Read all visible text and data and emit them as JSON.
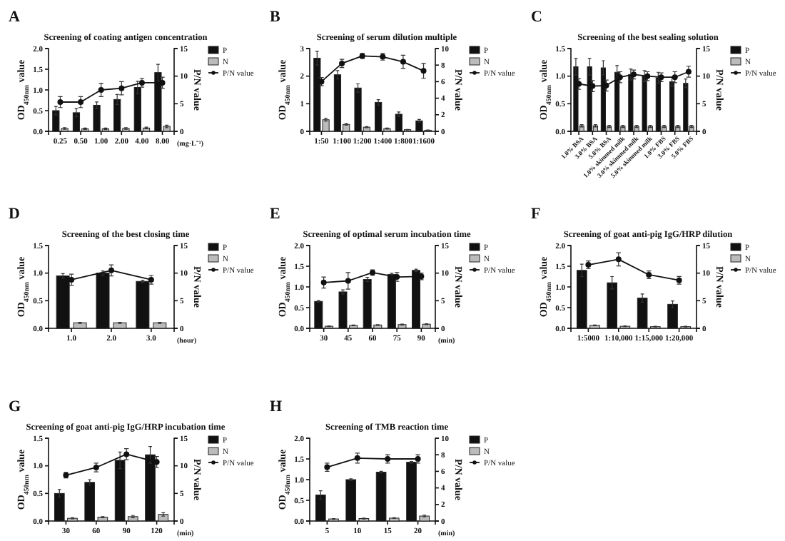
{
  "chart_data": [
    {
      "type": "bar",
      "title": "Screening of coating antigen concentration",
      "annotations": [
        "A"
      ],
      "xlabel": "(mg·L⁻¹)",
      "ylabel": "OD$_{450nm}$ value",
      "y2label": "P/N value",
      "legend": "right",
      "marker": "circle",
      "categories": [
        "0.25",
        "0.50",
        "1.00",
        "2.00",
        "4.00",
        "8.00"
      ],
      "ylim": [
        0,
        2
      ],
      "yticks": [
        {
          "value": 0,
          "label": "0.0"
        },
        0.5,
        {
          "value": 1,
          "label": "1.0"
        },
        1.5,
        {
          "value": 2,
          "label": "2.0"
        }
      ],
      "y2lim": [
        0,
        15
      ],
      "y2ticks": [
        0,
        5,
        10,
        15
      ],
      "series": [
        {
          "name": "P",
          "color": "#111111",
          "values": [
            0.5,
            0.45,
            0.63,
            0.77,
            1.06,
            1.42
          ],
          "errors": [
            0.1,
            0.1,
            0.08,
            0.12,
            0.15,
            0.2
          ]
        },
        {
          "name": "N",
          "color": "#bbbbbb",
          "values": [
            0.07,
            0.06,
            0.06,
            0.07,
            0.08,
            0.12
          ],
          "errors": [
            0.02,
            0.02,
            0.02,
            0.02,
            0.02,
            0.03
          ]
        },
        {
          "name": "P/N value",
          "type": "line",
          "axis": "y2",
          "color": "#111111",
          "values": [
            5.3,
            5.3,
            7.5,
            7.8,
            8.8,
            8.8
          ],
          "errors": [
            1,
            1,
            1.2,
            1.2,
            0.8,
            1
          ]
        }
      ]
    },
    {
      "type": "bar",
      "title": "Screening of serum dilution multiple",
      "annotations": [
        "B"
      ],
      "ylabel": "OD$_{450nm}$ value",
      "y2label": "P/N value",
      "legend": "right",
      "marker": "circle",
      "categories": [
        "1:50",
        "1:100",
        "1:200",
        "1:400",
        "1:800",
        "1:1600"
      ],
      "ylim": [
        0,
        3
      ],
      "yticks": [
        0,
        1,
        2,
        3
      ],
      "y2lim": [
        0,
        10
      ],
      "y2ticks": [
        0,
        2,
        4,
        6,
        8,
        10
      ],
      "series": [
        {
          "name": "P",
          "color": "#111111",
          "values": [
            2.65,
            2.05,
            1.57,
            1.05,
            0.62,
            0.38
          ],
          "errors": [
            0.25,
            0.15,
            0.15,
            0.1,
            0.08,
            0.05
          ]
        },
        {
          "name": "N",
          "color": "#bbbbbb",
          "values": [
            0.42,
            0.25,
            0.15,
            0.1,
            0.06,
            0.04
          ],
          "errors": [
            0.05,
            0.03,
            0.02,
            0.02,
            0.01,
            0.01
          ]
        },
        {
          "name": "P/N value",
          "type": "line",
          "axis": "y2",
          "color": "#111111",
          "values": [
            6,
            8.2,
            9.1,
            9,
            8.4,
            7.3
          ],
          "errors": [
            0.5,
            0.5,
            0.3,
            0.4,
            0.8,
            0.9
          ]
        }
      ]
    },
    {
      "type": "bar",
      "title": "Screening of the best sealing solution",
      "annotations": [
        "C"
      ],
      "ylabel": "OD$_{450nm}$ value",
      "y2label": "P/N value",
      "legend": "right",
      "marker": "circle",
      "categories": [
        "1.0% BSA",
        "3.0% BSA",
        "5.0% BSA",
        "1.0% skimmed milk",
        "3.0% skimmed milk",
        "5.0% skimmed milk",
        "1.0% FBS",
        "3.0% FBS",
        "5.0% FBS"
      ],
      "ylim": [
        0,
        1.5
      ],
      "yticks": [
        {
          "value": 0,
          "label": "0.0"
        },
        0.5,
        {
          "value": 1,
          "label": "1.0"
        },
        1.5
      ],
      "y2lim": [
        0,
        15
      ],
      "y2ticks": [
        0,
        5,
        10,
        15
      ],
      "series": [
        {
          "name": "P",
          "color": "#111111",
          "values": [
            1.17,
            1.17,
            1.15,
            1.07,
            1.03,
            1.0,
            0.97,
            0.9,
            0.87
          ],
          "errors": [
            0.15,
            0.15,
            0.13,
            0.12,
            0.1,
            0.1,
            0.1,
            0.08,
            0.08
          ]
        },
        {
          "name": "N",
          "color": "#bbbbbb",
          "values": [
            0.1,
            0.1,
            0.09,
            0.09,
            0.09,
            0.09,
            0.09,
            0.09,
            0.09
          ],
          "errors": [
            0.02,
            0.02,
            0.02,
            0.02,
            0.02,
            0.02,
            0.02,
            0.02,
            0.02
          ]
        },
        {
          "name": "P/N value",
          "type": "line",
          "axis": "y2",
          "color": "#111111",
          "values": [
            8.6,
            8.2,
            8.3,
            9.8,
            10.3,
            10,
            9.8,
            9.8,
            10.8
          ],
          "errors": [
            1,
            1,
            1,
            1,
            0.8,
            0.8,
            0.8,
            1,
            1
          ]
        }
      ]
    },
    {
      "type": "bar",
      "title": "Screening of the best closing time",
      "annotations": [
        "D"
      ],
      "xlabel": "(hour)",
      "ylabel": "OD$_{450nm}$ value",
      "y2label": "P/N value",
      "legend": "right",
      "marker": "circle",
      "categories": [
        "1.0",
        "2.0",
        "3.0"
      ],
      "ylim": [
        0,
        1.5
      ],
      "yticks": [
        {
          "value": 0,
          "label": "0.0"
        },
        0.5,
        {
          "value": 1,
          "label": "1.0"
        },
        1.5
      ],
      "y2lim": [
        0,
        15
      ],
      "y2ticks": [
        0,
        5,
        10,
        15
      ],
      "series": [
        {
          "name": "P",
          "color": "#111111",
          "values": [
            0.95,
            1.0,
            0.85
          ],
          "errors": [
            0.04,
            0.04,
            0.02
          ]
        },
        {
          "name": "N",
          "color": "#bbbbbb",
          "values": [
            0.1,
            0.1,
            0.1
          ],
          "errors": [
            0.01,
            0.01,
            0.01
          ]
        },
        {
          "name": "P/N value",
          "type": "line",
          "axis": "y2",
          "color": "#111111",
          "values": [
            8.8,
            10.5,
            8.8
          ],
          "errors": [
            1,
            1,
            0.8
          ]
        }
      ]
    },
    {
      "type": "bar",
      "title": "Screening of optimal serum incubation time",
      "annotations": [
        "E"
      ],
      "xlabel": "(min)",
      "ylabel": "OD$_{450nm}$ value",
      "y2label": "P/N value",
      "legend": "right",
      "marker": "circle",
      "categories": [
        "30",
        "45",
        "60",
        "75",
        "90"
      ],
      "ylim": [
        0,
        2
      ],
      "yticks": [
        {
          "value": 0,
          "label": "0.0"
        },
        0.5,
        {
          "value": 1,
          "label": "1.0"
        },
        1.5,
        {
          "value": 2,
          "label": "2.0"
        }
      ],
      "y2lim": [
        0,
        15
      ],
      "y2ticks": [
        0,
        5,
        10,
        15
      ],
      "series": [
        {
          "name": "P",
          "color": "#111111",
          "values": [
            0.65,
            0.88,
            1.18,
            1.3,
            1.4
          ],
          "errors": [
            0.02,
            0.05,
            0.05,
            0.03,
            0.03
          ]
        },
        {
          "name": "N",
          "color": "#bbbbbb",
          "values": [
            0.05,
            0.07,
            0.08,
            0.09,
            0.1
          ],
          "errors": [
            0.01,
            0.01,
            0.01,
            0.01,
            0.01
          ]
        },
        {
          "name": "P/N value",
          "type": "line",
          "axis": "y2",
          "color": "#111111",
          "values": [
            8.3,
            8.6,
            10.1,
            9.3,
            9.4
          ],
          "errors": [
            1,
            1.5,
            0.5,
            0.8,
            0.6
          ]
        }
      ]
    },
    {
      "type": "bar",
      "title": "Screening of goat anti-pig IgG/HRP dilution",
      "annotations": [
        "F"
      ],
      "ylabel": "OD$_{450nm}$ value",
      "y2label": "P/N value",
      "legend": "right",
      "marker": "circle",
      "categories": [
        "1:5000",
        "1:10,000",
        "1:15,000",
        "1:20,000"
      ],
      "ylim": [
        0,
        2
      ],
      "yticks": [
        {
          "value": 0,
          "label": "0.0"
        },
        0.5,
        {
          "value": 1,
          "label": "1.0"
        },
        1.5,
        {
          "value": 2,
          "label": "2.0"
        }
      ],
      "y2lim": [
        0,
        15
      ],
      "y2ticks": [
        0,
        5,
        10,
        15
      ],
      "series": [
        {
          "name": "P",
          "color": "#111111",
          "values": [
            1.4,
            1.1,
            0.73,
            0.58
          ],
          "errors": [
            0.15,
            0.15,
            0.1,
            0.08
          ]
        },
        {
          "name": "N",
          "color": "#bbbbbb",
          "values": [
            0.07,
            0.05,
            0.04,
            0.04
          ],
          "errors": [
            0.01,
            0.01,
            0.01,
            0.01
          ]
        },
        {
          "name": "P/N value",
          "type": "line",
          "axis": "y2",
          "color": "#111111",
          "values": [
            11.5,
            12.5,
            9.7,
            8.7
          ],
          "errors": [
            0.7,
            1.2,
            0.7,
            0.7
          ]
        }
      ]
    },
    {
      "type": "bar",
      "title": "Screening of goat anti-pig IgG/HRP incubation time",
      "annotations": [
        "G"
      ],
      "xlabel": "(min)",
      "ylabel": "OD$_{450nm}$ value",
      "y2label": "P/N value",
      "legend": "right",
      "marker": "circle",
      "categories": [
        "30",
        "60",
        "90",
        "120"
      ],
      "ylim": [
        0,
        1.5
      ],
      "yticks": [
        {
          "value": 0,
          "label": "0.0"
        },
        0.5,
        {
          "value": 1,
          "label": "1.0"
        },
        1.5
      ],
      "y2lim": [
        0,
        15
      ],
      "y2ticks": [
        0,
        5,
        10,
        15
      ],
      "series": [
        {
          "name": "P",
          "color": "#111111",
          "values": [
            0.5,
            0.7,
            1.1,
            1.2
          ],
          "errors": [
            0.07,
            0.05,
            0.15,
            0.15
          ]
        },
        {
          "name": "N",
          "color": "#bbbbbb",
          "values": [
            0.05,
            0.07,
            0.08,
            0.12
          ],
          "errors": [
            0.01,
            0.01,
            0.02,
            0.03
          ]
        },
        {
          "name": "P/N value",
          "type": "line",
          "axis": "y2",
          "color": "#111111",
          "values": [
            8.3,
            9.7,
            12.1,
            10.7
          ],
          "errors": [
            0.5,
            0.8,
            1,
            1
          ]
        }
      ]
    },
    {
      "type": "bar",
      "title": "Screening of TMB reaction time",
      "annotations": [
        "H"
      ],
      "xlabel": "(min)",
      "ylabel": "OD$_{450nm}$ value",
      "y2label": "P/N value",
      "legend": "right",
      "marker": "circle",
      "categories": [
        "5",
        "10",
        "15",
        "20"
      ],
      "ylim": [
        0,
        2
      ],
      "yticks": [
        {
          "value": 0,
          "label": "0.0"
        },
        0.5,
        {
          "value": 1,
          "label": "1.0"
        },
        1.5,
        {
          "value": 2,
          "label": "2.0"
        }
      ],
      "y2lim": [
        0,
        10
      ],
      "y2ticks": [
        0,
        2,
        4,
        6,
        8,
        10
      ],
      "series": [
        {
          "name": "P",
          "color": "#111111",
          "values": [
            0.63,
            1.0,
            1.18,
            1.42
          ],
          "errors": [
            0.1,
            0.02,
            0.02,
            0.02
          ]
        },
        {
          "name": "N",
          "color": "#bbbbbb",
          "values": [
            0.05,
            0.06,
            0.07,
            0.12
          ],
          "errors": [
            0.01,
            0.01,
            0.01,
            0.02
          ]
        },
        {
          "name": "P/N value",
          "type": "line",
          "axis": "y2",
          "color": "#111111",
          "values": [
            6.5,
            7.6,
            7.5,
            7.5
          ],
          "errors": [
            0.5,
            0.6,
            0.5,
            0.5
          ]
        }
      ]
    }
  ]
}
